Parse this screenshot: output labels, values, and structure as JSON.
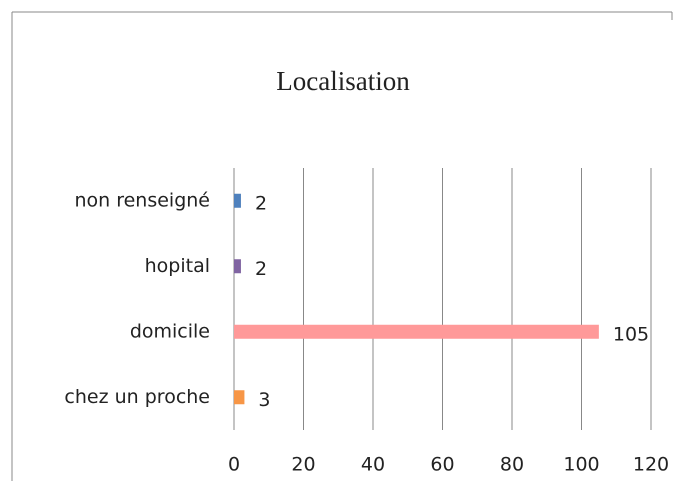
{
  "chart_data": {
    "type": "barh",
    "title": "Localisation",
    "categories": [
      "non renseigné",
      "hopital",
      "domicile",
      "chez un proche"
    ],
    "values": [
      2,
      2,
      105,
      3
    ],
    "colors": [
      "#4f81bd",
      "#8064a2",
      "#ff9999",
      "#f79646"
    ],
    "xlim": [
      0,
      120
    ],
    "xticks": [
      0,
      20,
      40,
      60,
      80,
      100,
      120
    ],
    "grid": true
  }
}
